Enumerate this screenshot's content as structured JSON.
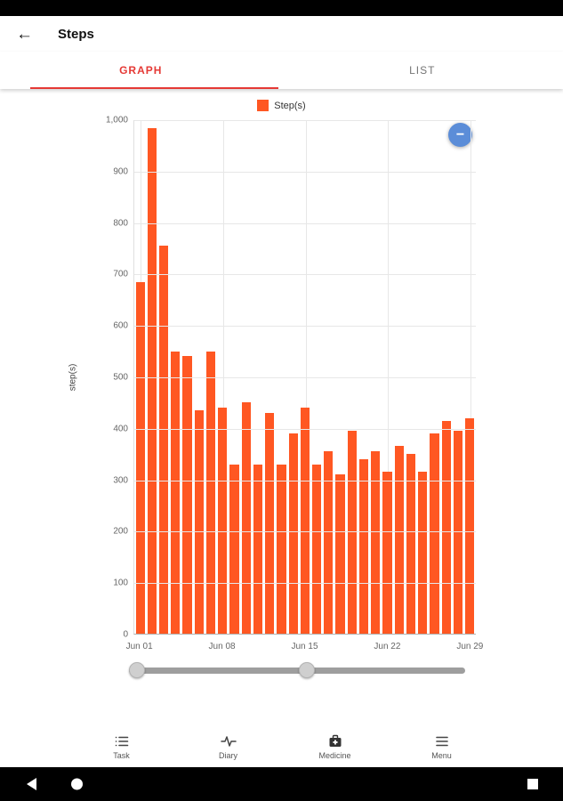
{
  "app_bar": {
    "title": "Steps",
    "back_icon": "arrow-left-icon"
  },
  "tabs": [
    {
      "label": "GRAPH",
      "active": true
    },
    {
      "label": "LIST",
      "active": false
    }
  ],
  "accent_red": "#E53935",
  "legend": {
    "label": "Step(s)",
    "color": "#FF5722"
  },
  "zoom_button": {
    "label": "−",
    "color": "#5B8DD8"
  },
  "chart_data": {
    "type": "bar",
    "title": "",
    "xlabel": "",
    "ylabel": "step(s)",
    "ylim": [
      0,
      1000
    ],
    "grid": true,
    "legend_position": "top-center",
    "bar_color": "#FF5722",
    "y_ticks": [
      "1,000",
      "900",
      "800",
      "700",
      "600",
      "500",
      "400",
      "300",
      "200",
      "100",
      "0"
    ],
    "x_tick_labels": [
      "Jun 01",
      "Jun 08",
      "Jun 15",
      "Jun 22",
      "Jun 29"
    ],
    "x_tick_indices": [
      0,
      7,
      14,
      21,
      28
    ],
    "categories": [
      "Jun 01",
      "Jun 02",
      "Jun 03",
      "Jun 04",
      "Jun 05",
      "Jun 06",
      "Jun 07",
      "Jun 08",
      "Jun 09",
      "Jun 10",
      "Jun 11",
      "Jun 12",
      "Jun 13",
      "Jun 14",
      "Jun 15",
      "Jun 16",
      "Jun 17",
      "Jun 18",
      "Jun 19",
      "Jun 20",
      "Jun 21",
      "Jun 22",
      "Jun 23",
      "Jun 24",
      "Jun 25",
      "Jun 26",
      "Jun 27",
      "Jun 28",
      "Jun 29"
    ],
    "values": [
      685,
      985,
      755,
      550,
      540,
      435,
      550,
      440,
      330,
      450,
      330,
      430,
      330,
      390,
      440,
      330,
      355,
      310,
      395,
      340,
      355,
      315,
      365,
      350,
      315,
      390,
      415,
      395,
      420
    ]
  },
  "slider": {
    "handle_positions": [
      2.5,
      53
    ],
    "track_color": "#9e9e9e"
  },
  "bottom_nav": {
    "items": [
      {
        "label": "Task",
        "icon": "task-list-icon"
      },
      {
        "label": "Diary",
        "icon": "waveform-icon"
      },
      {
        "label": "Medicine",
        "icon": "medicine-bag-icon"
      },
      {
        "label": "Menu",
        "icon": "hamburger-menu-icon"
      }
    ]
  },
  "android_nav": {
    "back": "triangle-left",
    "home": "circle",
    "recent": "square"
  }
}
